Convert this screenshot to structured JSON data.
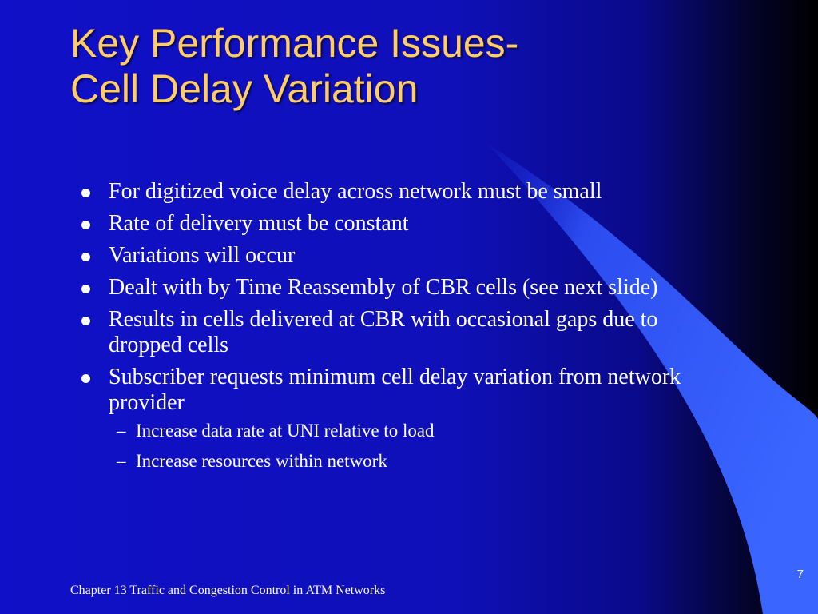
{
  "slide": {
    "title_line1": "Key Performance Issues-",
    "title_line2": "Cell Delay Variation",
    "bullets": [
      "For digitized voice delay across network must be small",
      "Rate of delivery must be constant",
      "Variations will occur",
      "Dealt with by Time Reassembly of CBR cells (see next slide)",
      "Results in cells delivered at CBR with occasional gaps due to dropped cells",
      "Subscriber requests minimum cell delay variation from network provider"
    ],
    "subbullets": [
      "Increase data rate at UNI relative to load",
      "Increase resources within network"
    ],
    "sub_marker": "–",
    "footer": "Chapter 13 Traffic and Congestion Control in ATM Networks",
    "page_number": "7"
  },
  "colors": {
    "title": "#ffcc66",
    "swoosh": "#3366ff",
    "text": "#ffffff"
  }
}
